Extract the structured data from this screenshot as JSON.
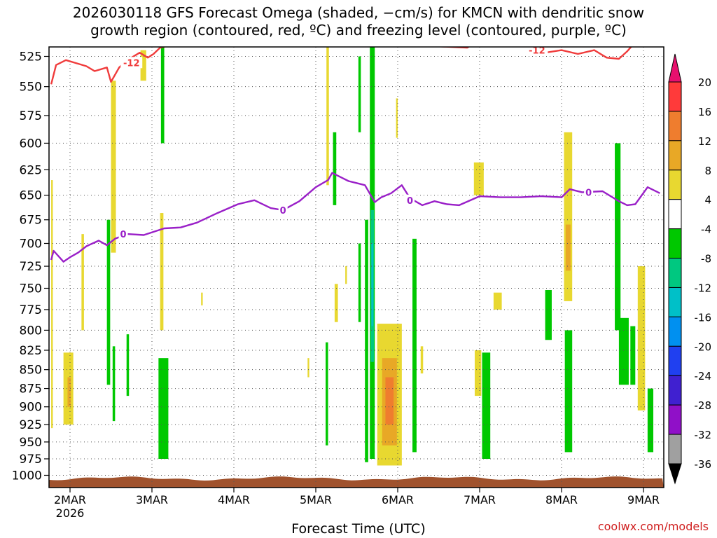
{
  "title": {
    "line1": "2026030118 GFS Forecast Omega (shaded, −cm/s) for KMCN with dendritic snow",
    "line2": "growth region (contoured, red, ºC) and freezing level (contoured, purple, ºC)"
  },
  "watermark": "coolwx.com/models",
  "chart_data": {
    "type": "contour",
    "xlabel": "Forecast Time (UTC)",
    "ylabel": "",
    "x_ticks": [
      "2MAR",
      "3MAR",
      "4MAR",
      "5MAR",
      "6MAR",
      "7MAR",
      "8MAR",
      "9MAR"
    ],
    "x_sublabel": "2026",
    "xlim_days": [
      1.75,
      9.2
    ],
    "y_ticks": [
      525,
      550,
      575,
      600,
      625,
      650,
      675,
      700,
      725,
      750,
      775,
      800,
      825,
      850,
      875,
      900,
      925,
      950,
      975,
      1000
    ],
    "ylim_hpa": [
      510,
      1010
    ],
    "y_scale": "log-pressure",
    "grid": true,
    "surface_color": "#a0522d",
    "colorbar": {
      "labels": [
        "20",
        "16",
        "12",
        "8",
        "4",
        "-4",
        "-8",
        "-12",
        "-16",
        "-20",
        "-24",
        "-28",
        "-32",
        "-36"
      ],
      "colors": [
        "#e8106e",
        "#ff3a3a",
        "#ef7d2e",
        "#e8a826",
        "#e8d830",
        "#ffffff",
        "#00c800",
        "#00c880",
        "#00c0c8",
        "#0090f0",
        "#2040f0",
        "#4020d0",
        "#9010c8",
        "#a0a0a0",
        "#000000"
      ]
    },
    "contours": [
      {
        "name": "-12",
        "color": "#f03c3c",
        "points": [
          [
            1.77,
            548
          ],
          [
            1.83,
            532
          ],
          [
            1.95,
            528
          ],
          [
            2.1,
            531
          ],
          [
            2.2,
            533
          ],
          [
            2.3,
            537
          ],
          [
            2.45,
            534
          ],
          [
            2.5,
            546
          ],
          [
            2.6,
            534
          ],
          [
            2.7,
            528
          ],
          [
            2.85,
            522
          ],
          [
            2.95,
            526
          ],
          [
            3.02,
            523
          ],
          [
            3.1,
            518
          ],
          [
            3.3,
            515
          ],
          [
            3.5,
            514
          ],
          [
            3.8,
            513
          ],
          [
            4.0,
            512
          ],
          [
            4.5,
            511
          ],
          [
            5.0,
            512
          ],
          [
            5.4,
            511
          ],
          [
            5.6,
            512
          ],
          [
            5.7,
            515
          ],
          [
            5.85,
            512
          ],
          [
            6.1,
            511
          ],
          [
            6.25,
            515
          ],
          [
            6.5,
            517
          ],
          [
            6.85,
            518
          ],
          [
            7.0,
            512
          ],
          [
            7.3,
            512
          ],
          [
            7.6,
            514
          ],
          [
            7.8,
            522
          ],
          [
            8.0,
            520
          ],
          [
            8.2,
            523
          ],
          [
            8.4,
            520
          ],
          [
            8.55,
            526
          ],
          [
            8.7,
            527
          ],
          [
            8.8,
            521
          ],
          [
            8.88,
            515
          ],
          [
            9.0,
            510
          ]
        ]
      },
      {
        "name": "0",
        "color": "#9a20c8",
        "points": [
          [
            1.77,
            718
          ],
          [
            1.8,
            708
          ],
          [
            1.92,
            720
          ],
          [
            2.0,
            715
          ],
          [
            2.1,
            710
          ],
          [
            2.2,
            703
          ],
          [
            2.35,
            697
          ],
          [
            2.45,
            702
          ],
          [
            2.55,
            695
          ],
          [
            2.7,
            690
          ],
          [
            2.9,
            691
          ],
          [
            3.15,
            684
          ],
          [
            3.35,
            683
          ],
          [
            3.55,
            678
          ],
          [
            3.8,
            668
          ],
          [
            4.05,
            659
          ],
          [
            4.25,
            655
          ],
          [
            4.45,
            663
          ],
          [
            4.6,
            665
          ],
          [
            4.8,
            656
          ],
          [
            5.0,
            642
          ],
          [
            5.15,
            635
          ],
          [
            5.2,
            628
          ],
          [
            5.4,
            636
          ],
          [
            5.6,
            640
          ],
          [
            5.72,
            657
          ],
          [
            5.8,
            652
          ],
          [
            5.92,
            648
          ],
          [
            6.05,
            640
          ],
          [
            6.15,
            653
          ],
          [
            6.3,
            660
          ],
          [
            6.45,
            656
          ],
          [
            6.6,
            659
          ],
          [
            6.75,
            660
          ],
          [
            7.0,
            651
          ],
          [
            7.25,
            652
          ],
          [
            7.5,
            652
          ],
          [
            7.75,
            651
          ],
          [
            8.0,
            652
          ],
          [
            8.1,
            644
          ],
          [
            8.25,
            647
          ],
          [
            8.5,
            646
          ],
          [
            8.7,
            656
          ],
          [
            8.8,
            660
          ],
          [
            8.9,
            659
          ],
          [
            9.05,
            642
          ],
          [
            9.2,
            648
          ]
        ]
      }
    ],
    "omega_cells": [
      {
        "x0": 1.77,
        "x1": 1.79,
        "p0": 635,
        "p1": 930,
        "level": 4
      },
      {
        "x0": 1.92,
        "x1": 2.04,
        "p0": 828,
        "p1": 925,
        "level": 4
      },
      {
        "x0": 1.97,
        "x1": 2.01,
        "p0": 860,
        "p1": 900,
        "level": 8
      },
      {
        "x0": 2.14,
        "x1": 2.17,
        "p0": 690,
        "p1": 800,
        "level": 4
      },
      {
        "x0": 2.45,
        "x1": 2.49,
        "p0": 675,
        "p1": 870,
        "level": -4
      },
      {
        "x0": 2.5,
        "x1": 2.56,
        "p0": 545,
        "p1": 710,
        "level": 4
      },
      {
        "x0": 2.52,
        "x1": 2.55,
        "p0": 820,
        "p1": 920,
        "level": -4
      },
      {
        "x0": 2.69,
        "x1": 2.72,
        "p0": 805,
        "p1": 885,
        "level": -4
      },
      {
        "x0": 2.86,
        "x1": 2.93,
        "p0": 520,
        "p1": 545,
        "level": 4
      },
      {
        "x0": 3.08,
        "x1": 3.2,
        "p0": 835,
        "p1": 975,
        "level": -4
      },
      {
        "x0": 3.11,
        "x1": 3.15,
        "p0": 510,
        "p1": 600,
        "level": -4
      },
      {
        "x0": 3.1,
        "x1": 3.14,
        "p0": 668,
        "p1": 800,
        "level": 4
      },
      {
        "x0": 3.6,
        "x1": 3.62,
        "p0": 755,
        "p1": 770,
        "level": 4
      },
      {
        "x0": 4.9,
        "x1": 4.92,
        "p0": 835,
        "p1": 860,
        "level": 4
      },
      {
        "x0": 5.12,
        "x1": 5.15,
        "p0": 815,
        "p1": 955,
        "level": -4
      },
      {
        "x0": 5.13,
        "x1": 5.16,
        "p0": 510,
        "p1": 640,
        "level": 4
      },
      {
        "x0": 5.21,
        "x1": 5.25,
        "p0": 590,
        "p1": 660,
        "level": -4
      },
      {
        "x0": 5.23,
        "x1": 5.27,
        "p0": 745,
        "p1": 790,
        "level": 4
      },
      {
        "x0": 5.36,
        "x1": 5.38,
        "p0": 725,
        "p1": 745,
        "level": 4
      },
      {
        "x0": 5.52,
        "x1": 5.55,
        "p0": 525,
        "p1": 590,
        "level": -4
      },
      {
        "x0": 5.52,
        "x1": 5.55,
        "p0": 700,
        "p1": 790,
        "level": -4
      },
      {
        "x0": 5.6,
        "x1": 5.64,
        "p0": 675,
        "p1": 980,
        "level": -4
      },
      {
        "x0": 5.66,
        "x1": 5.72,
        "p0": 510,
        "p1": 975,
        "level": -4
      },
      {
        "x0": 5.67,
        "x1": 5.71,
        "p0": 665,
        "p1": 840,
        "level": -8
      },
      {
        "x0": 5.68,
        "x1": 5.7,
        "p0": 700,
        "p1": 795,
        "level": -12
      },
      {
        "x0": 5.75,
        "x1": 6.05,
        "p0": 792,
        "p1": 985,
        "level": 4
      },
      {
        "x0": 5.81,
        "x1": 5.99,
        "p0": 835,
        "p1": 955,
        "level": 8
      },
      {
        "x0": 5.85,
        "x1": 5.95,
        "p0": 860,
        "p1": 925,
        "level": 12
      },
      {
        "x0": 5.98,
        "x1": 6.0,
        "p0": 560,
        "p1": 595,
        "level": 4
      },
      {
        "x0": 6.01,
        "x1": 6.04,
        "p0": 800,
        "p1": 840,
        "level": 4
      },
      {
        "x0": 6.18,
        "x1": 6.23,
        "p0": 695,
        "p1": 965,
        "level": -4
      },
      {
        "x0": 6.28,
        "x1": 6.31,
        "p0": 820,
        "p1": 855,
        "level": 4
      },
      {
        "x0": 6.93,
        "x1": 7.05,
        "p0": 618,
        "p1": 650,
        "level": 4
      },
      {
        "x0": 6.94,
        "x1": 7.02,
        "p0": 825,
        "p1": 885,
        "level": 4
      },
      {
        "x0": 7.03,
        "x1": 7.13,
        "p0": 828,
        "p1": 975,
        "level": -4
      },
      {
        "x0": 7.17,
        "x1": 7.27,
        "p0": 755,
        "p1": 775,
        "level": 4
      },
      {
        "x0": 7.8,
        "x1": 7.88,
        "p0": 752,
        "p1": 812,
        "level": -4
      },
      {
        "x0": 8.03,
        "x1": 8.13,
        "p0": 590,
        "p1": 765,
        "level": 4
      },
      {
        "x0": 8.05,
        "x1": 8.11,
        "p0": 680,
        "p1": 730,
        "level": 8
      },
      {
        "x0": 8.04,
        "x1": 8.13,
        "p0": 800,
        "p1": 965,
        "level": -4
      },
      {
        "x0": 8.65,
        "x1": 8.72,
        "p0": 600,
        "p1": 800,
        "level": -4
      },
      {
        "x0": 8.7,
        "x1": 8.82,
        "p0": 785,
        "p1": 870,
        "level": -4
      },
      {
        "x0": 8.84,
        "x1": 8.9,
        "p0": 795,
        "p1": 870,
        "level": -4
      },
      {
        "x0": 8.93,
        "x1": 9.02,
        "p0": 725,
        "p1": 905,
        "level": 4
      },
      {
        "x0": 9.05,
        "x1": 9.12,
        "p0": 875,
        "p1": 965,
        "level": -4
      }
    ]
  }
}
